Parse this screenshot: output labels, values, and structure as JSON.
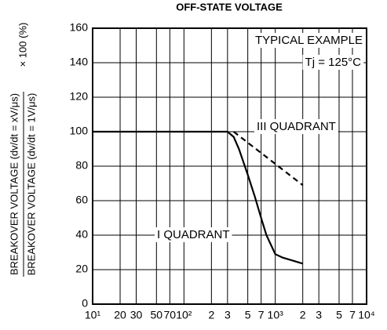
{
  "chart_data": {
    "type": "line",
    "title": "OFF-STATE VOLTAGE",
    "y_label": {
      "numerator": "BREAKOVER VOLTAGE (dv/dt = xV/μs)",
      "denominator": "BREAKOVER VOLTAGE (dv/dt = 1V/μs)",
      "factor": "× 100 (%)"
    },
    "annotations": [
      "TYPICAL EXAMPLE",
      "Tj = 125°C"
    ],
    "x_scale": "log",
    "grid": true,
    "xlim": [
      10,
      10000
    ],
    "xticks": [
      {
        "value": 10,
        "label": "10¹"
      },
      20,
      30,
      50,
      70,
      {
        "value": 100,
        "label": "10²"
      },
      {
        "value": 200,
        "label": "2"
      },
      {
        "value": 300,
        "label": "3"
      },
      {
        "value": 500,
        "label": "5"
      },
      {
        "value": 700,
        "label": "7"
      },
      {
        "value": 1000,
        "label": "10³"
      },
      {
        "value": 2000,
        "label": "2"
      },
      {
        "value": 3000,
        "label": "3"
      },
      {
        "value": 5000,
        "label": "5"
      },
      {
        "value": 7000,
        "label": "7"
      },
      {
        "value": 10000,
        "label": "10⁴"
      }
    ],
    "ylim": [
      0,
      160
    ],
    "yticks": [
      0,
      20,
      40,
      60,
      80,
      100,
      120,
      140,
      160
    ],
    "series": [
      {
        "name": "I QUADRANT",
        "color": "#000000",
        "dashed": false,
        "x": [
          10,
          300,
          350,
          400,
          500,
          600,
          700,
          800,
          1000,
          1200,
          1500,
          2000
        ],
        "values": [
          100,
          100,
          97,
          90,
          75,
          62,
          50,
          40,
          29,
          27,
          25.5,
          23.5
        ]
      },
      {
        "name": "III QUADRANT",
        "color": "#000000",
        "dashed": true,
        "x": [
          350,
          2000
        ],
        "values": [
          100,
          69
        ]
      }
    ]
  }
}
